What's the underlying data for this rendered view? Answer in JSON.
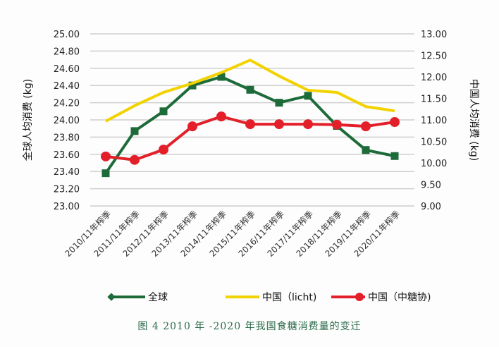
{
  "chart_data": {
    "type": "line",
    "title": "",
    "caption": "图 4 2010 年 -2020 年我国食糖消费量的变迁",
    "categories": [
      "2010/11年榨季",
      "2011/11年榨季",
      "2012/11年榨季",
      "2013/11年榨季",
      "2014/11年榨季",
      "2015/11年榨季",
      "2016/11年榨季",
      "2017/11年榨季",
      "2018/11年榨季",
      "2019/11年榨季",
      "2020/11年榨季"
    ],
    "ylabel": "全球人均消费 (kg)",
    "y2label": "中国人均消费 (kg)",
    "ylim": [
      23.0,
      25.0
    ],
    "y2lim": [
      9.0,
      13.0
    ],
    "yticks": [
      "23.00",
      "23.20",
      "23.40",
      "23.60",
      "23.80",
      "24.00",
      "24.20",
      "24.40",
      "24.60",
      "24.80",
      "25.00"
    ],
    "y2ticks": [
      "9.00",
      "9.50",
      "10.00",
      "10.50",
      "11.00",
      "11.50",
      "12.00",
      "12.50",
      "13.00"
    ],
    "grid": true,
    "legend_position": "bottom",
    "series": [
      {
        "name": "全球",
        "axis": "left",
        "color": "#1e6b3a",
        "marker": "square",
        "values": [
          23.38,
          23.87,
          24.1,
          24.4,
          24.5,
          24.35,
          24.2,
          24.28,
          23.93,
          23.65,
          23.58
        ]
      },
      {
        "name": "中国（licht)",
        "axis": "right",
        "color": "#f2d200",
        "marker": "none",
        "values": [
          10.97,
          11.33,
          11.64,
          11.85,
          12.1,
          12.39,
          12.02,
          11.69,
          11.64,
          11.31,
          11.21
        ]
      },
      {
        "name": "中国（中糖协)",
        "axis": "right",
        "color": "#e3202a",
        "marker": "circle",
        "values": [
          10.15,
          10.07,
          10.31,
          10.85,
          11.08,
          10.9,
          10.9,
          10.9,
          10.89,
          10.85,
          10.95
        ]
      }
    ]
  }
}
